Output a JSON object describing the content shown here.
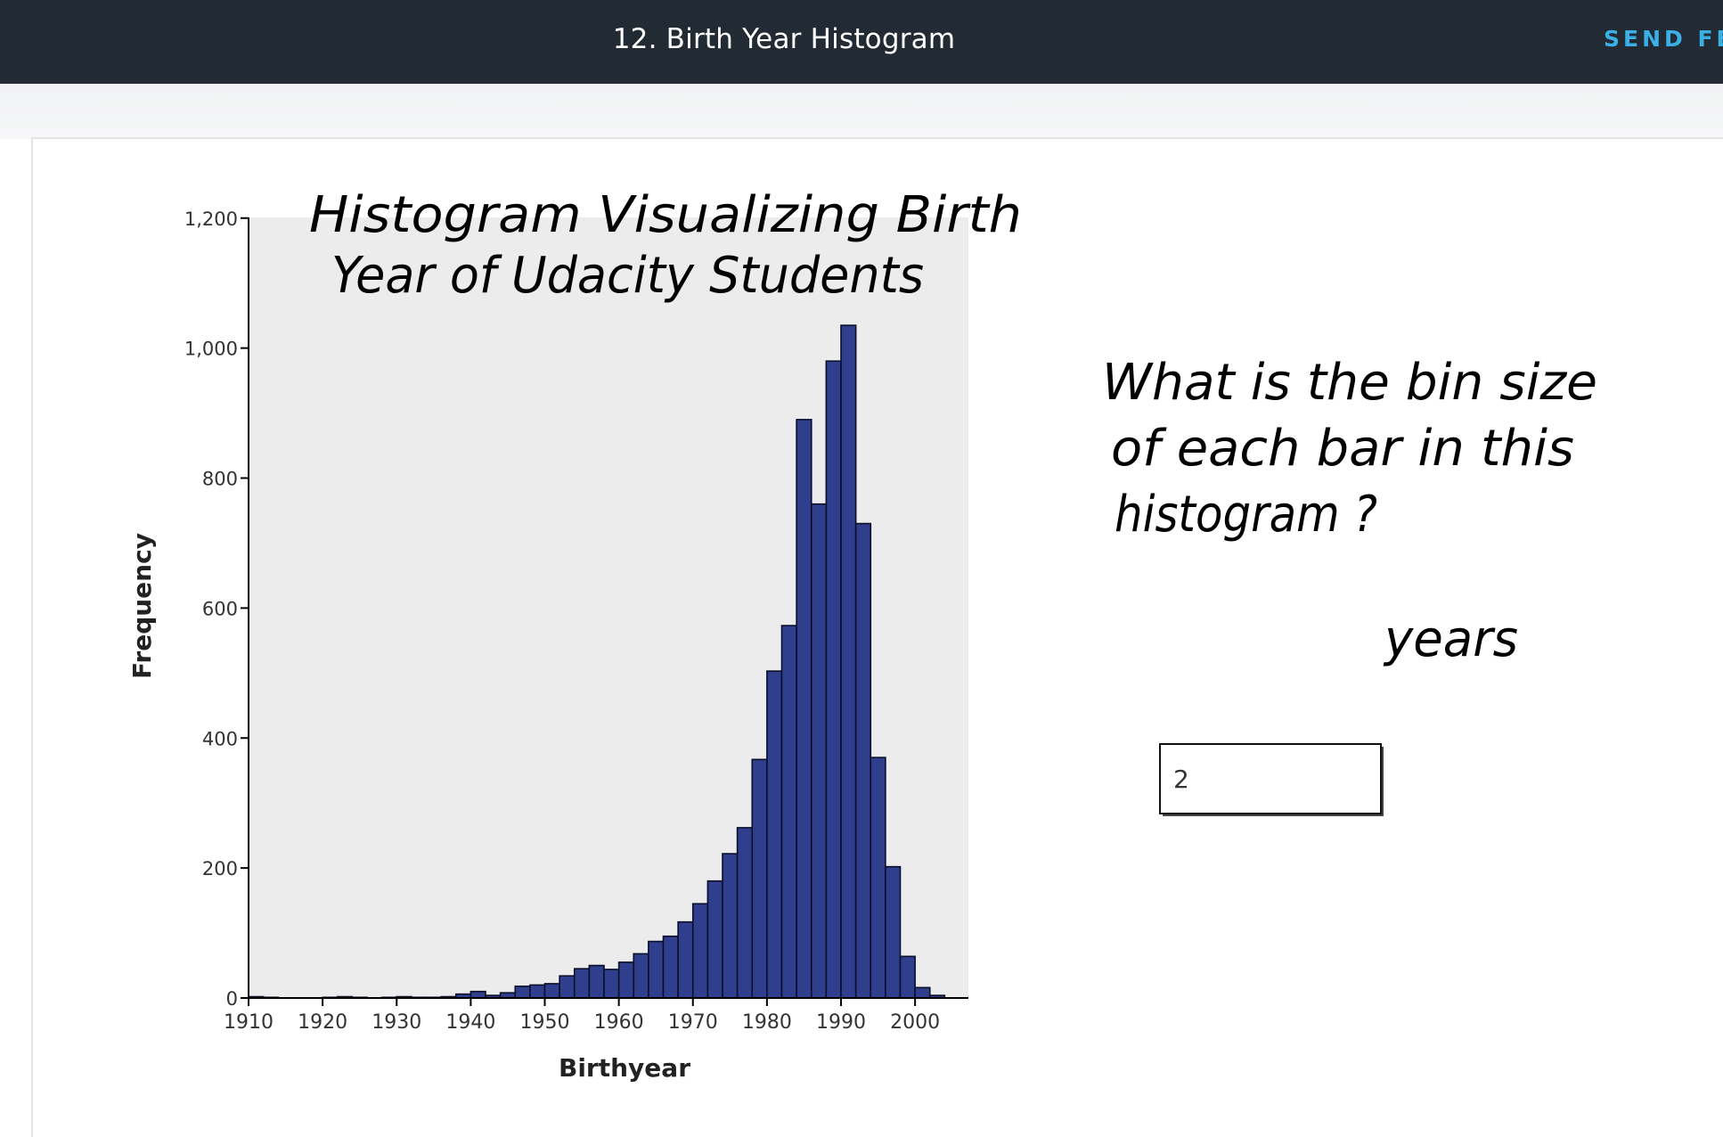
{
  "header": {
    "title": "12. Birth Year Histogram",
    "feedback_label": "SEND FEE"
  },
  "quiz": {
    "question_lines": [
      "What is the bin size",
      "of each bar in this",
      "histogram ?"
    ],
    "answer_value": "2",
    "unit_label": "years"
  },
  "chart_data": {
    "type": "bar",
    "title_lines": [
      "Histogram Visualizing Birth",
      "Year of Udacity Students"
    ],
    "xlabel": "Birthyear",
    "ylabel": "Frequency",
    "xlim": [
      1910,
      2006
    ],
    "ylim": [
      0,
      1260
    ],
    "xticks": [
      "1910",
      "1920",
      "1930",
      "1940",
      "1950",
      "1960",
      "1970",
      "1980",
      "1990",
      "2000"
    ],
    "yticks": [
      "0",
      "200",
      "400",
      "600",
      "800",
      "1,000",
      "1,200"
    ],
    "bin_width": 2,
    "bins": [
      {
        "x": 1910,
        "y": 2
      },
      {
        "x": 1912,
        "y": 1
      },
      {
        "x": 1914,
        "y": 0
      },
      {
        "x": 1916,
        "y": 0
      },
      {
        "x": 1918,
        "y": 0
      },
      {
        "x": 1920,
        "y": 1
      },
      {
        "x": 1922,
        "y": 2
      },
      {
        "x": 1924,
        "y": 1
      },
      {
        "x": 1926,
        "y": 0
      },
      {
        "x": 1928,
        "y": 1
      },
      {
        "x": 1930,
        "y": 2
      },
      {
        "x": 1932,
        "y": 1
      },
      {
        "x": 1934,
        "y": 1
      },
      {
        "x": 1936,
        "y": 2
      },
      {
        "x": 1938,
        "y": 6
      },
      {
        "x": 1940,
        "y": 10
      },
      {
        "x": 1942,
        "y": 4
      },
      {
        "x": 1944,
        "y": 8
      },
      {
        "x": 1946,
        "y": 18
      },
      {
        "x": 1948,
        "y": 20
      },
      {
        "x": 1950,
        "y": 22
      },
      {
        "x": 1952,
        "y": 34
      },
      {
        "x": 1954,
        "y": 45
      },
      {
        "x": 1956,
        "y": 50
      },
      {
        "x": 1958,
        "y": 44
      },
      {
        "x": 1960,
        "y": 55
      },
      {
        "x": 1962,
        "y": 68
      },
      {
        "x": 1964,
        "y": 87
      },
      {
        "x": 1966,
        "y": 95
      },
      {
        "x": 1968,
        "y": 117
      },
      {
        "x": 1970,
        "y": 145
      },
      {
        "x": 1972,
        "y": 180
      },
      {
        "x": 1974,
        "y": 222
      },
      {
        "x": 1976,
        "y": 262
      },
      {
        "x": 1978,
        "y": 367
      },
      {
        "x": 1980,
        "y": 503
      },
      {
        "x": 1982,
        "y": 573
      },
      {
        "x": 1984,
        "y": 890
      },
      {
        "x": 1986,
        "y": 760
      },
      {
        "x": 1988,
        "y": 980
      },
      {
        "x": 1990,
        "y": 1035
      },
      {
        "x": 1992,
        "y": 730
      },
      {
        "x": 1994,
        "y": 370
      },
      {
        "x": 1996,
        "y": 202
      },
      {
        "x": 1998,
        "y": 64
      },
      {
        "x": 2000,
        "y": 16
      },
      {
        "x": 2002,
        "y": 4
      }
    ],
    "colors": {
      "bar": "#2f3f8e",
      "bar_edge": "#0b0f2a",
      "plot_bg": "#ececec"
    },
    "grid": false,
    "legend": "none"
  }
}
